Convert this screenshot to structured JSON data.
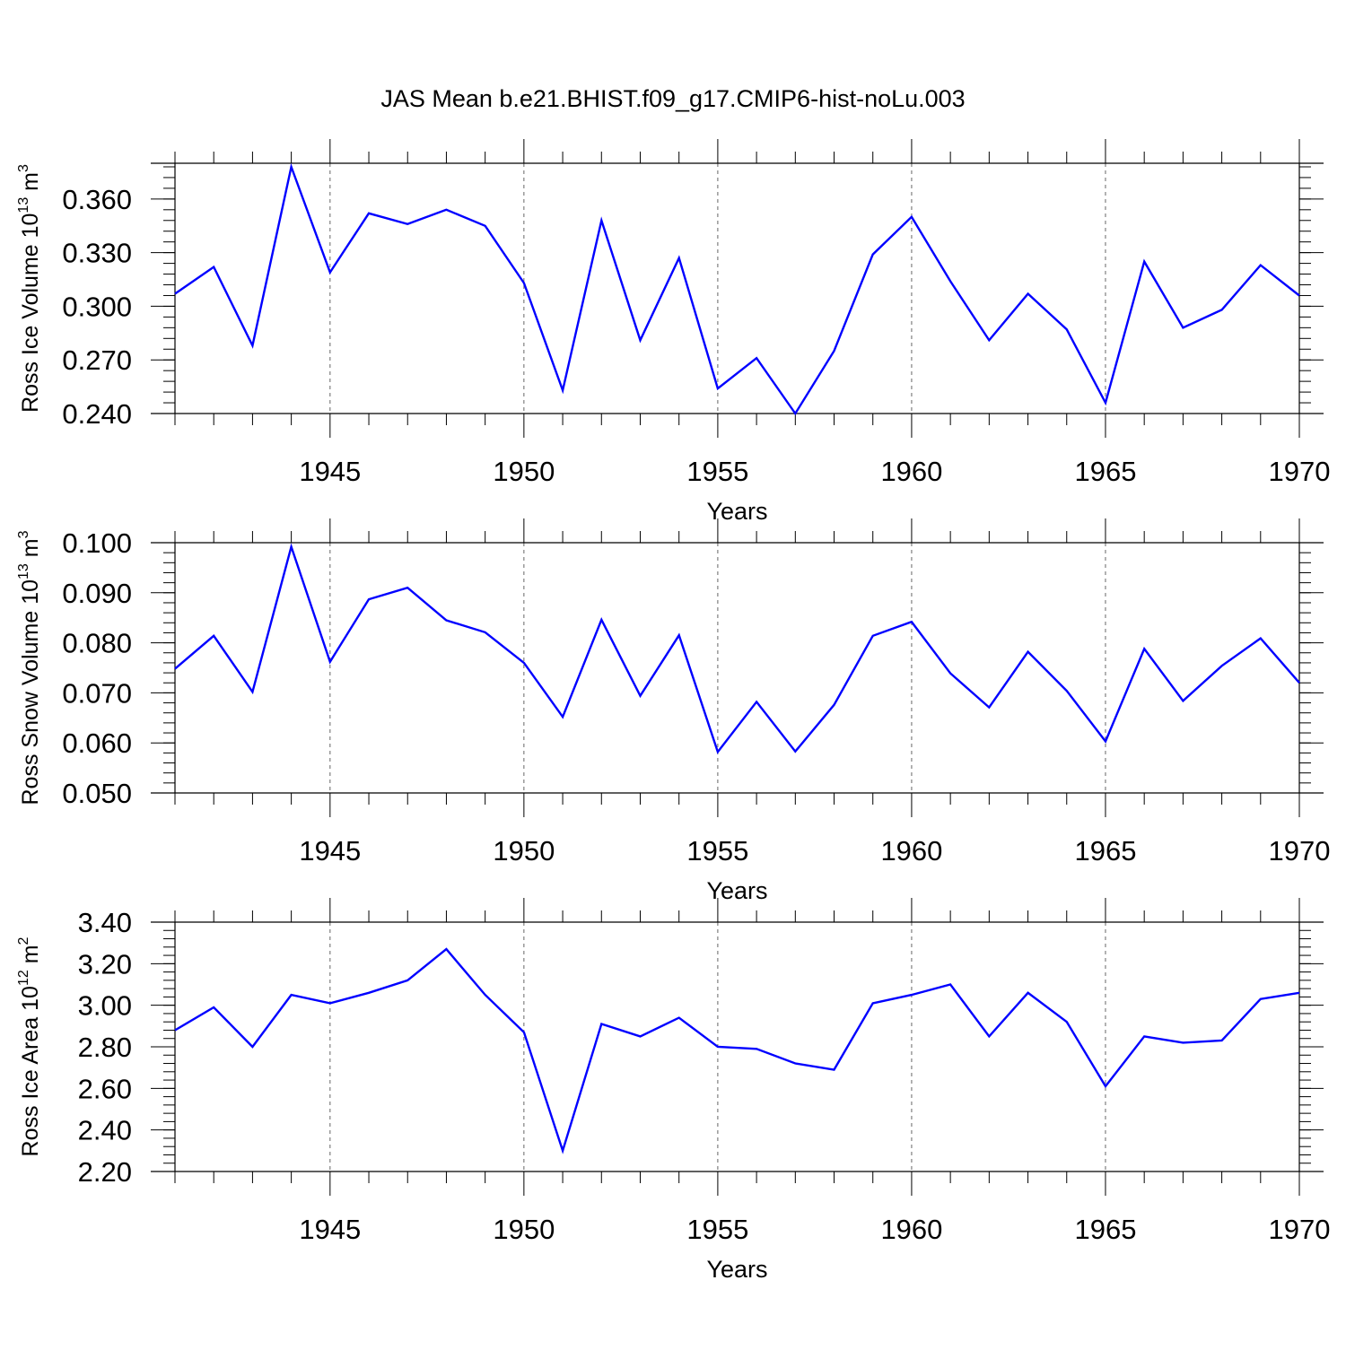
{
  "figure": {
    "title": "JAS Mean b.e21.BHIST.f09_g17.CMIP6-hist-noLu.003",
    "line_color": "#0000ff"
  },
  "chart_data": [
    {
      "type": "line",
      "title": "",
      "xlabel": "Years",
      "ylabel": {
        "base": "Ross Ice Volume 10",
        "exponent": "13",
        "unit": " m",
        "unit_exponent": "3"
      },
      "xlim": [
        1941,
        1970
      ],
      "ylim": [
        0.24,
        0.38
      ],
      "xticks": [
        1945,
        1950,
        1955,
        1960,
        1965,
        1970
      ],
      "yticks": [
        0.24,
        0.27,
        0.3,
        0.33,
        0.36
      ],
      "ytick_labels": [
        "0.240",
        "0.270",
        "0.300",
        "0.330",
        "0.360"
      ],
      "grid": "vertical-dashed",
      "series": [
        {
          "x": [
            1941,
            1942,
            1943,
            1944,
            1945,
            1946,
            1947,
            1948,
            1949,
            1950,
            1951,
            1952,
            1953,
            1954,
            1955,
            1956,
            1957,
            1958,
            1959,
            1960,
            1961,
            1962,
            1963,
            1964,
            1965,
            1966,
            1967,
            1968,
            1969,
            1970
          ],
          "values": [
            0.307,
            0.322,
            0.278,
            0.378,
            0.319,
            0.352,
            0.346,
            0.354,
            0.345,
            0.313,
            0.253,
            0.348,
            0.281,
            0.327,
            0.254,
            0.271,
            0.24,
            0.275,
            0.329,
            0.35,
            0.314,
            0.281,
            0.307,
            0.287,
            0.246,
            0.325,
            0.288,
            0.298,
            0.323,
            0.306
          ]
        }
      ]
    },
    {
      "type": "line",
      "title": "",
      "xlabel": "Years",
      "ylabel": {
        "base": "Ross Snow Volume 10",
        "exponent": "13",
        "unit": " m",
        "unit_exponent": "3"
      },
      "xlim": [
        1941,
        1970
      ],
      "ylim": [
        0.05,
        0.1
      ],
      "xticks": [
        1945,
        1950,
        1955,
        1960,
        1965,
        1970
      ],
      "yticks": [
        0.05,
        0.06,
        0.07,
        0.08,
        0.09,
        0.1
      ],
      "ytick_labels": [
        "0.050",
        "0.060",
        "0.070",
        "0.080",
        "0.090",
        "0.100"
      ],
      "grid": "vertical-dashed",
      "series": [
        {
          "x": [
            1941,
            1942,
            1943,
            1944,
            1945,
            1946,
            1947,
            1948,
            1949,
            1950,
            1951,
            1952,
            1953,
            1954,
            1955,
            1956,
            1957,
            1958,
            1959,
            1960,
            1961,
            1962,
            1963,
            1964,
            1965,
            1966,
            1967,
            1968,
            1969,
            1970
          ],
          "values": [
            0.0748,
            0.0814,
            0.0702,
            0.0992,
            0.0762,
            0.0887,
            0.091,
            0.0845,
            0.0821,
            0.076,
            0.0652,
            0.0846,
            0.0694,
            0.0815,
            0.0582,
            0.0682,
            0.0583,
            0.0676,
            0.0814,
            0.0842,
            0.0739,
            0.0671,
            0.0782,
            0.0704,
            0.0603,
            0.0788,
            0.0684,
            0.0754,
            0.0809,
            0.072
          ]
        }
      ]
    },
    {
      "type": "line",
      "title": "",
      "xlabel": "Years",
      "ylabel": {
        "base": "Ross Ice Area 10",
        "exponent": "12",
        "unit": " m",
        "unit_exponent": "2"
      },
      "xlim": [
        1941,
        1970
      ],
      "ylim": [
        2.2,
        3.4
      ],
      "xticks": [
        1945,
        1950,
        1955,
        1960,
        1965,
        1970
      ],
      "yticks": [
        2.2,
        2.4,
        2.6,
        2.8,
        3.0,
        3.2,
        3.4
      ],
      "ytick_labels": [
        "2.20",
        "2.40",
        "2.60",
        "2.80",
        "3.00",
        "3.20",
        "3.40"
      ],
      "grid": "vertical-dashed",
      "series": [
        {
          "x": [
            1941,
            1942,
            1943,
            1944,
            1945,
            1946,
            1947,
            1948,
            1949,
            1950,
            1951,
            1952,
            1953,
            1954,
            1955,
            1956,
            1957,
            1958,
            1959,
            1960,
            1961,
            1962,
            1963,
            1964,
            1965,
            1966,
            1967,
            1968,
            1969,
            1970
          ],
          "values": [
            2.88,
            2.99,
            2.8,
            3.05,
            3.01,
            3.06,
            3.12,
            3.27,
            3.05,
            2.87,
            2.3,
            2.91,
            2.85,
            2.94,
            2.8,
            2.79,
            2.72,
            2.69,
            3.01,
            3.05,
            3.1,
            2.85,
            3.06,
            2.92,
            2.61,
            2.85,
            2.82,
            2.83,
            3.03,
            3.06
          ]
        }
      ]
    }
  ]
}
